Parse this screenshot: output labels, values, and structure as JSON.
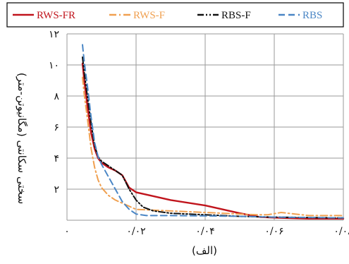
{
  "chart_data": {
    "type": "line",
    "title": "",
    "xlabel": "(الف)",
    "ylabel": "سختی سکانتی (مگانیوتن-متر)",
    "xlim": [
      0,
      0.08
    ],
    "ylim": [
      0,
      12
    ],
    "x_ticks": [
      0,
      0.02,
      0.04,
      0.06,
      0.08
    ],
    "x_tick_labels": [
      "۰",
      "۰/۰۲",
      "۰/۰۴",
      "۰/۰۶",
      "۰/۰۸"
    ],
    "y_ticks": [
      0,
      2,
      4,
      6,
      8,
      10,
      12
    ],
    "y_tick_labels": [
      "",
      "۲",
      "۴",
      "۶",
      "۸",
      "۱۰",
      "۱۲"
    ],
    "grid": true,
    "legend_position": "top",
    "series": [
      {
        "name": "RWS-FR",
        "color": "#c0141c",
        "dash": "solid",
        "points": [
          [
            0.0045,
            10.1
          ],
          [
            0.005,
            9.0
          ],
          [
            0.006,
            7.2
          ],
          [
            0.007,
            5.6
          ],
          [
            0.008,
            4.6
          ],
          [
            0.009,
            4.0
          ],
          [
            0.01,
            3.7
          ],
          [
            0.012,
            3.4
          ],
          [
            0.014,
            3.2
          ],
          [
            0.016,
            2.9
          ],
          [
            0.018,
            2.1
          ],
          [
            0.02,
            1.8
          ],
          [
            0.024,
            1.6
          ],
          [
            0.03,
            1.3
          ],
          [
            0.04,
            0.95
          ],
          [
            0.045,
            0.7
          ],
          [
            0.05,
            0.45
          ],
          [
            0.056,
            0.2
          ],
          [
            0.062,
            0.15
          ],
          [
            0.07,
            0.1
          ],
          [
            0.08,
            0.1
          ]
        ]
      },
      {
        "name": "RWS-F",
        "color": "#f0a050",
        "dash": "dashdot",
        "points": [
          [
            0.0045,
            9.2
          ],
          [
            0.005,
            8.1
          ],
          [
            0.006,
            6.4
          ],
          [
            0.007,
            4.6
          ],
          [
            0.008,
            3.4
          ],
          [
            0.009,
            2.6
          ],
          [
            0.01,
            2.1
          ],
          [
            0.012,
            1.6
          ],
          [
            0.014,
            1.3
          ],
          [
            0.016,
            1.1
          ],
          [
            0.018,
            0.9
          ],
          [
            0.02,
            0.7
          ],
          [
            0.025,
            0.65
          ],
          [
            0.035,
            0.55
          ],
          [
            0.045,
            0.45
          ],
          [
            0.055,
            0.35
          ],
          [
            0.058,
            0.35
          ],
          [
            0.062,
            0.5
          ],
          [
            0.066,
            0.4
          ],
          [
            0.07,
            0.3
          ],
          [
            0.08,
            0.3
          ]
        ]
      },
      {
        "name": "RBS-F",
        "color": "#111111",
        "dash": "dashdotdot",
        "points": [
          [
            0.0045,
            10.5
          ],
          [
            0.005,
            9.5
          ],
          [
            0.006,
            7.8
          ],
          [
            0.007,
            6.2
          ],
          [
            0.008,
            4.8
          ],
          [
            0.009,
            4.1
          ],
          [
            0.01,
            3.8
          ],
          [
            0.012,
            3.5
          ],
          [
            0.014,
            3.2
          ],
          [
            0.016,
            2.9
          ],
          [
            0.018,
            2.0
          ],
          [
            0.02,
            1.3
          ],
          [
            0.022,
            0.85
          ],
          [
            0.025,
            0.6
          ],
          [
            0.03,
            0.45
          ],
          [
            0.04,
            0.35
          ],
          [
            0.05,
            0.25
          ],
          [
            0.06,
            0.2
          ],
          [
            0.08,
            0.15
          ]
        ]
      },
      {
        "name": "RBS",
        "color": "#4a86c5",
        "dash": "dashed",
        "points": [
          [
            0.0045,
            11.3
          ],
          [
            0.005,
            10.2
          ],
          [
            0.006,
            8.5
          ],
          [
            0.007,
            6.6
          ],
          [
            0.008,
            5.0
          ],
          [
            0.009,
            4.1
          ],
          [
            0.01,
            3.6
          ],
          [
            0.012,
            2.8
          ],
          [
            0.014,
            2.0
          ],
          [
            0.016,
            1.2
          ],
          [
            0.018,
            0.7
          ],
          [
            0.02,
            0.4
          ],
          [
            0.023,
            0.3
          ],
          [
            0.03,
            0.3
          ],
          [
            0.04,
            0.28
          ],
          [
            0.05,
            0.25
          ],
          [
            0.06,
            0.2
          ],
          [
            0.08,
            0.15
          ]
        ]
      }
    ]
  }
}
